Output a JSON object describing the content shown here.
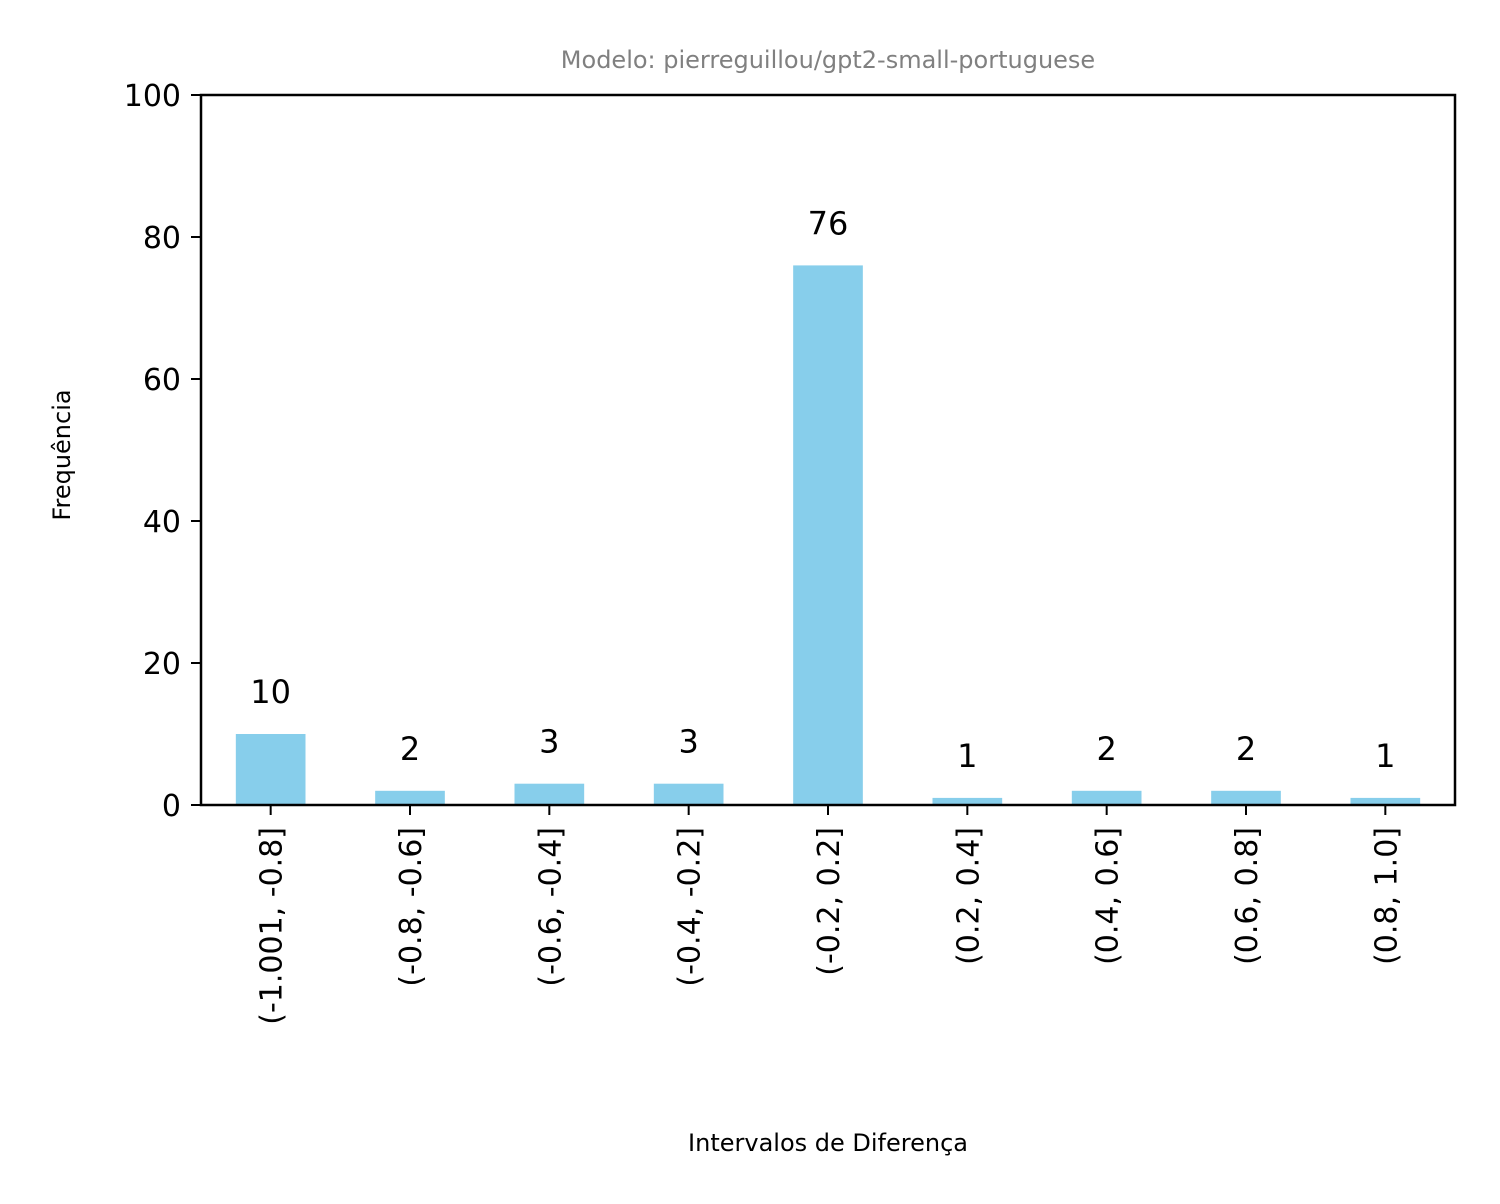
{
  "chart_data": {
    "type": "bar",
    "title": "Modelo: pierreguillou/gpt2-small-portuguese",
    "xlabel": "Intervalos de Diferença",
    "ylabel": "Frequência",
    "categories": [
      "(-1.001, -0.8]",
      "(-0.8, -0.6]",
      "(-0.6, -0.4]",
      "(-0.4, -0.2]",
      "(-0.2, 0.2]",
      "(0.2, 0.4]",
      "(0.4, 0.6]",
      "(0.6, 0.8]",
      "(0.8, 1.0]"
    ],
    "values": [
      10,
      2,
      3,
      3,
      76,
      1,
      2,
      2,
      1
    ],
    "data_labels": [
      "10",
      "2",
      "3",
      "3",
      "76",
      "1",
      "2",
      "2",
      "1"
    ],
    "ylim": [
      0,
      100
    ],
    "yticks": [
      0,
      20,
      40,
      60,
      80,
      100
    ],
    "ytick_labels": [
      "0",
      "20",
      "40",
      "60",
      "80",
      "100"
    ],
    "grid": false,
    "legend": "none",
    "colors": {
      "bar": "#87ceeb",
      "title": "#808080",
      "axis": "#000000"
    }
  }
}
